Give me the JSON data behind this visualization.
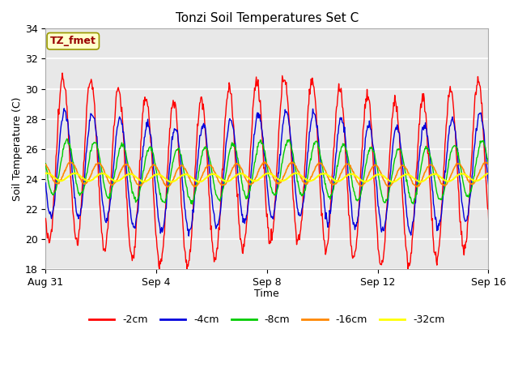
{
  "title": "Tonzi Soil Temperatures Set C",
  "xlabel": "Time",
  "ylabel": "Soil Temperature (C)",
  "ylim": [
    18,
    34
  ],
  "yticks": [
    18,
    20,
    22,
    24,
    26,
    28,
    30,
    32,
    34
  ],
  "date_labels": [
    "Aug 31",
    "Sep 4",
    "Sep 8",
    "Sep 12",
    "Sep 16"
  ],
  "date_positions": [
    0,
    4,
    8,
    12,
    16
  ],
  "legend_labels": [
    "-2cm",
    "-4cm",
    "-8cm",
    "-16cm",
    "-32cm"
  ],
  "legend_colors": [
    "#ff0000",
    "#0000dd",
    "#00cc00",
    "#ff8800",
    "#ffff00"
  ],
  "annotation_text": "TZ_fmet",
  "annotation_color": "#990000",
  "annotation_bg": "#ffffcc",
  "annotation_edge": "#999900",
  "plot_bg": "#e8e8e8",
  "fig_bg": "#ffffff",
  "grid_color": "#ffffff",
  "n_days": 17,
  "pts_per_day": 48,
  "amplitudes": [
    5.5,
    3.5,
    1.8,
    0.7,
    0.25
  ],
  "phase_delays_days": [
    0.0,
    0.06,
    0.14,
    0.28,
    0.42
  ],
  "mean_temps": [
    24.5,
    24.5,
    24.5,
    24.3,
    24.1
  ],
  "figsize": [
    6.4,
    4.8
  ],
  "dpi": 100
}
